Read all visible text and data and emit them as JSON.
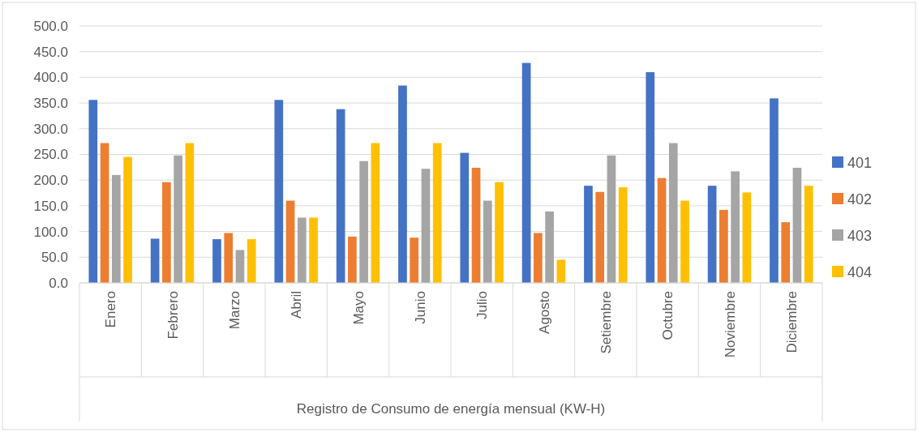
{
  "chart_data": {
    "type": "bar",
    "xlabel": "Registro de Consumo de energía mensual (KW-H)",
    "categories": [
      "Enero",
      "Febrero",
      "Marzo",
      "Abril",
      "Mayo",
      "Junio",
      "Julio",
      "Agosto",
      "Setiembre",
      "Octubre",
      "Noviembre",
      "Diciembre"
    ],
    "series": [
      {
        "name": "401",
        "color": "#4472c4",
        "values": [
          356,
          86,
          85,
          356,
          338,
          384,
          253,
          428,
          189,
          410,
          189,
          359
        ]
      },
      {
        "name": "402",
        "color": "#ed7d31",
        "values": [
          272,
          196,
          97,
          160,
          90,
          88,
          224,
          97,
          177,
          204,
          142,
          118
        ]
      },
      {
        "name": "403",
        "color": "#a5a5a5",
        "values": [
          210,
          248,
          64,
          127,
          237,
          222,
          160,
          139,
          248,
          272,
          217,
          224
        ]
      },
      {
        "name": "404",
        "color": "#ffc000",
        "values": [
          245,
          272,
          85,
          127,
          272,
          272,
          196,
          45,
          186,
          160,
          176,
          189
        ]
      }
    ],
    "ylim": [
      0,
      500
    ],
    "yticks": [
      {
        "value": 0,
        "label": "0.0"
      },
      {
        "value": 50,
        "label": "50.0"
      },
      {
        "value": 100,
        "label": "100.0"
      },
      {
        "value": 150,
        "label": "150.0"
      },
      {
        "value": 200,
        "label": "200.0"
      },
      {
        "value": 250,
        "label": "250.0"
      },
      {
        "value": 300,
        "label": "300.0"
      },
      {
        "value": 350,
        "label": "350.0"
      },
      {
        "value": 400,
        "label": "400.0"
      },
      {
        "value": 450,
        "label": "450.0"
      },
      {
        "value": 500,
        "label": "500.0"
      }
    ],
    "grid": "y",
    "legend": "right"
  }
}
